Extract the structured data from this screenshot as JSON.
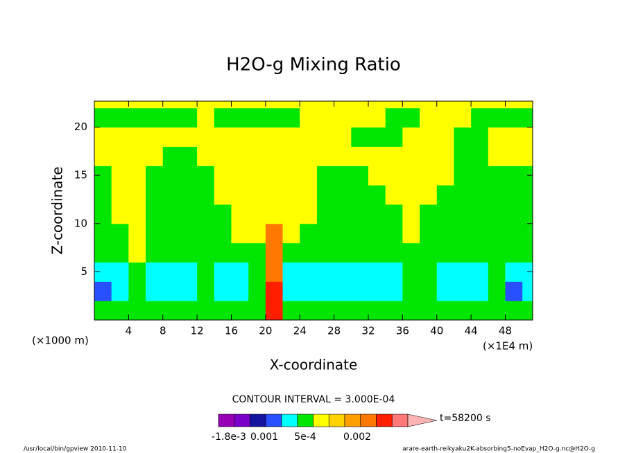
{
  "chart_data": {
    "type": "contour",
    "title": "H2O-g Mixing Ratio",
    "x_label": "X-coordinate",
    "y_label": "Z-coordinate",
    "x_unit": "(×1000 m)",
    "x_unit2": "(×1E4 m)",
    "xlim": [
      0,
      51.2
    ],
    "ylim": [
      0,
      22.7
    ],
    "xticks": [
      4,
      8,
      12,
      16,
      20,
      24,
      28,
      32,
      36,
      40,
      44,
      48
    ],
    "yticks": [
      5,
      10,
      15,
      20
    ],
    "x": [
      1,
      3,
      5,
      7,
      9,
      11,
      13,
      15,
      17,
      19,
      21,
      23,
      25,
      27,
      29,
      31,
      33,
      35,
      37,
      39,
      41,
      43,
      45,
      47,
      49,
      51
    ],
    "y": [
      1,
      3,
      5,
      7,
      9,
      11,
      13,
      15,
      17,
      19,
      21,
      23
    ],
    "z": [
      [
        -0.0001,
        -0.0001,
        -0.0001,
        -0.0001,
        -0.0001,
        -0.0001,
        -0.0001,
        -0.0001,
        -0.0001,
        -0.0001,
        0.0013,
        -0.0001,
        -0.0001,
        -0.0001,
        -0.0001,
        -0.0001,
        -0.0001,
        -0.0001,
        -0.0001,
        -0.0001,
        -0.0001,
        -0.0001,
        -0.0001,
        -0.0001,
        -0.0001,
        -0.0001
      ],
      [
        -0.0007,
        -0.0004,
        -0.0001,
        -0.0004,
        -0.0004,
        -0.0004,
        -0.0001,
        -0.0004,
        -0.0004,
        -0.0001,
        0.0013,
        -0.0004,
        -0.0004,
        -0.0004,
        -0.0004,
        -0.0004,
        -0.0004,
        -0.0004,
        -0.0001,
        -0.0001,
        -0.0004,
        -0.0004,
        -0.0004,
        -0.0001,
        -0.0007,
        -0.0004
      ],
      [
        -0.0004,
        -0.0004,
        -0.0001,
        -0.0004,
        -0.0004,
        -0.0004,
        -0.0001,
        -0.0004,
        -0.0004,
        -0.0001,
        0.001,
        -0.0004,
        -0.0004,
        -0.0004,
        -0.0004,
        -0.0004,
        -0.0004,
        -0.0004,
        -0.0001,
        -0.0001,
        -0.0004,
        -0.0004,
        -0.0004,
        -0.0001,
        -0.0004,
        -0.0004
      ],
      [
        -0.0001,
        -0.0001,
        0.0001,
        -0.0001,
        -0.0001,
        -0.0001,
        -0.0001,
        -0.0001,
        -0.0001,
        -0.0001,
        0.001,
        -0.0001,
        -0.0001,
        -0.0001,
        -0.0001,
        -0.0001,
        -0.0001,
        -0.0001,
        -0.0001,
        -0.0001,
        -0.0001,
        -0.0001,
        -0.0001,
        -0.0001,
        -0.0001,
        -0.0001
      ],
      [
        -0.0001,
        -0.0001,
        0.0001,
        -0.0001,
        -0.0001,
        -0.0001,
        -0.0001,
        -0.0001,
        0.0001,
        0.0001,
        0.001,
        0.0001,
        -0.0001,
        -0.0001,
        -0.0001,
        -0.0001,
        -0.0001,
        -0.0001,
        0.0001,
        -0.0001,
        -0.0001,
        -0.0001,
        -0.0001,
        -0.0001,
        -0.0001,
        -0.0001
      ],
      [
        -0.0001,
        0.0001,
        0.0001,
        -0.0001,
        -0.0001,
        -0.0001,
        -0.0001,
        -0.0001,
        0.0001,
        0.0001,
        0.0001,
        0.0001,
        0.0001,
        -0.0001,
        -0.0001,
        -0.0001,
        -0.0001,
        -0.0001,
        0.0001,
        -0.0001,
        -0.0001,
        -0.0001,
        -0.0001,
        -0.0001,
        -0.0001,
        -0.0001
      ],
      [
        -0.0001,
        0.0001,
        0.0001,
        -0.0001,
        -0.0001,
        -0.0001,
        -0.0001,
        0.0001,
        0.0001,
        0.0001,
        0.0001,
        0.0001,
        0.0001,
        -0.0001,
        -0.0001,
        -0.0001,
        -0.0001,
        0.0001,
        0.0001,
        0.0001,
        -0.0001,
        -0.0001,
        -0.0001,
        -0.0001,
        -0.0001,
        -0.0001
      ],
      [
        -0.0001,
        0.0001,
        0.0001,
        -0.0001,
        -0.0001,
        -0.0001,
        -0.0001,
        0.0001,
        0.0001,
        0.0001,
        0.0001,
        0.0001,
        0.0001,
        -0.0001,
        -0.0001,
        -0.0001,
        0.0001,
        0.0001,
        0.0001,
        0.0001,
        0.0001,
        -0.0001,
        -0.0001,
        -0.0001,
        -0.0001,
        -0.0001
      ],
      [
        0.0001,
        0.0001,
        0.0001,
        0.0001,
        -0.0001,
        -0.0001,
        0.0001,
        0.0001,
        0.0001,
        0.0001,
        0.0001,
        0.0001,
        0.0001,
        0.0001,
        0.0001,
        0.0001,
        0.0001,
        0.0001,
        0.0001,
        0.0001,
        0.0001,
        -0.0001,
        -0.0001,
        0.0001,
        0.0001,
        0.0001
      ],
      [
        0.0001,
        0.0001,
        0.0001,
        0.0001,
        0.0001,
        0.0001,
        0.0001,
        0.0001,
        0.0001,
        0.0001,
        0.0001,
        0.0001,
        0.0001,
        0.0001,
        0.0001,
        -0.0001,
        -0.0001,
        -0.0001,
        0.0001,
        0.0001,
        0.0001,
        -0.0001,
        -0.0001,
        0.0001,
        0.0001,
        0.0001
      ],
      [
        -0.0001,
        -0.0001,
        -0.0001,
        -0.0001,
        -0.0001,
        -0.0001,
        0.0001,
        -0.0001,
        -0.0001,
        -0.0001,
        -0.0001,
        -0.0001,
        0.0001,
        0.0001,
        0.0001,
        0.0001,
        0.0001,
        -0.0001,
        -0.0001,
        0.0001,
        0.0001,
        0.0001,
        -0.0001,
        -0.0001,
        -0.0001,
        -0.0001
      ],
      [
        0.0001,
        0.0001,
        0.0001,
        0.0001,
        0.0001,
        0.0001,
        0.0001,
        0.0001,
        0.0001,
        0.0001,
        0.0001,
        0.0001,
        0.0001,
        0.0001,
        0.0001,
        0.0001,
        0.0001,
        0.0001,
        0.0001,
        0.0001,
        0.0001,
        0.0001,
        0.0001,
        0.0001,
        0.0001,
        0.0001
      ]
    ],
    "levels": [
      -0.0015,
      -0.0012,
      -0.0009,
      -0.0006,
      -0.0003,
      0,
      0.0003,
      0.0006,
      0.0009,
      0.0012,
      0.0015,
      0.0018
    ],
    "colors": [
      "#9600b4",
      "#7800c8",
      "#1414a0",
      "#2850ff",
      "#00ffff",
      "#00e600",
      "#ffff00",
      "#ffd200",
      "#ffa000",
      "#ff7800",
      "#ff1e00",
      "#ff7878",
      "#ffb4b4"
    ],
    "contour_interval": "CONTOUR INTERVAL = 3.000E-04",
    "colorbar_labels": [
      "-1.8e-3",
      "0.001",
      "5e-4",
      "0.002"
    ],
    "time": "t=58200 s",
    "footer_left": "/usr/local/bin/gpview  2010-11-10",
    "footer_right": "arare-earth-reikyaku2K-absorbing5-noEvap_H2O-g.nc@H2O-g"
  }
}
